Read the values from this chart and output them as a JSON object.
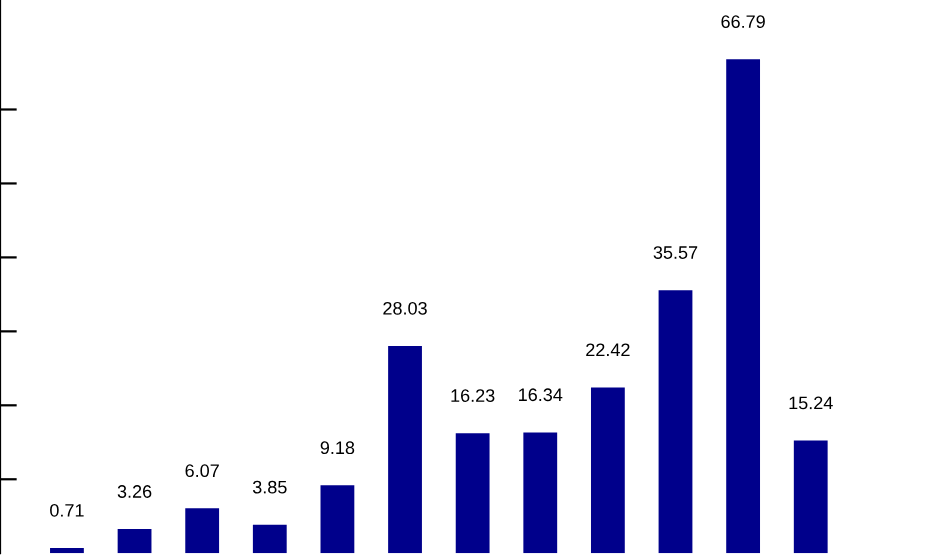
{
  "chart_data": {
    "type": "bar",
    "categories": [
      null,
      null,
      null,
      null,
      null,
      null,
      null,
      null,
      null,
      null,
      null,
      null
    ],
    "values": [
      0.71,
      3.26,
      6.07,
      3.85,
      9.18,
      28.03,
      16.23,
      16.34,
      22.42,
      35.57,
      66.79,
      15.24
    ],
    "color": "#00008b",
    "data_labels": true,
    "yticks": [
      {
        "value": 10,
        "label": null
      },
      {
        "value": 20,
        "label": null
      },
      {
        "value": 30,
        "label": null
      },
      {
        "value": 40,
        "label": null
      },
      {
        "value": 50,
        "label": null
      },
      {
        "value": 60,
        "label": null
      }
    ]
  }
}
